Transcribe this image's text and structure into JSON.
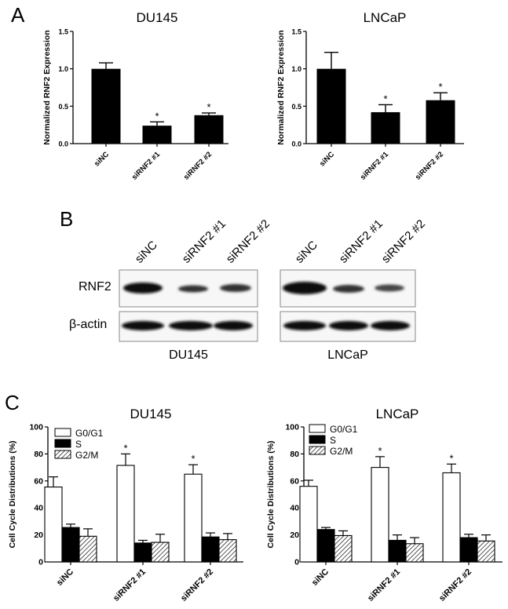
{
  "panels": {
    "a": "A",
    "b": "B",
    "c": "C"
  },
  "chart_data": [
    {
      "type": "bar",
      "title": "DU145",
      "ylabel": "Normalized RNF2 Expression",
      "categories": [
        "siNC",
        "siRNF2 #1",
        "siRNF2 #2"
      ],
      "values": [
        1.0,
        0.24,
        0.38
      ],
      "errors": [
        0.08,
        0.05,
        0.03
      ],
      "significance": [
        "",
        "*",
        "*"
      ],
      "ylim": [
        0,
        1.5
      ],
      "yticks": [
        "0.0",
        "0.5",
        "1.0",
        "1.5"
      ],
      "color": "#000000"
    },
    {
      "type": "bar",
      "title": "LNCaP",
      "ylabel": "Normalized RNF2 Expression",
      "categories": [
        "siNC",
        "siRNF2 #1",
        "siRNF2 #2"
      ],
      "values": [
        1.0,
        0.42,
        0.58
      ],
      "errors": [
        0.22,
        0.1,
        0.1
      ],
      "significance": [
        "",
        "*",
        "*"
      ],
      "ylim": [
        0,
        1.5
      ],
      "yticks": [
        "0.0",
        "0.5",
        "1.0",
        "1.5"
      ],
      "color": "#000000"
    },
    {
      "type": "bar",
      "title": "DU145",
      "ylabel": "Cell Cycle Distributions (%)",
      "categories": [
        "siNC",
        "siRNF2 #1",
        "siRNF2 #2"
      ],
      "series": [
        {
          "name": "G0/G1",
          "values": [
            55.5,
            71.5,
            65
          ],
          "errors": [
            7.5,
            8.5,
            7
          ],
          "fill": "white"
        },
        {
          "name": "S",
          "values": [
            25.5,
            14,
            18.5
          ],
          "errors": [
            2.5,
            2,
            3
          ],
          "fill": "black"
        },
        {
          "name": "G2/M",
          "values": [
            19,
            14.5,
            16.5
          ],
          "errors": [
            5.5,
            6,
            4.5
          ],
          "fill": "hatch"
        }
      ],
      "significance": [
        "",
        "*",
        "*"
      ],
      "ylim": [
        0,
        100
      ],
      "yticks": [
        "0",
        "20",
        "40",
        "60",
        "80",
        "100"
      ],
      "legend": "top-left"
    },
    {
      "type": "bar",
      "title": "LNCaP",
      "ylabel": "Cell Cycle Distributions (%)",
      "categories": [
        "siNC",
        "siRNF2 #1",
        "siRNF2 #2"
      ],
      "series": [
        {
          "name": "G0/G1",
          "values": [
            56,
            70,
            66
          ],
          "errors": [
            4.5,
            8,
            6.5
          ],
          "fill": "white"
        },
        {
          "name": "S",
          "values": [
            24,
            16,
            18
          ],
          "errors": [
            1.5,
            4,
            2.5
          ],
          "fill": "black"
        },
        {
          "name": "G2/M",
          "values": [
            19.5,
            13.5,
            15.5
          ],
          "errors": [
            3.5,
            4.5,
            4.5
          ],
          "fill": "hatch"
        }
      ],
      "significance": [
        "",
        "*",
        "*"
      ],
      "ylim": [
        0,
        100
      ],
      "yticks": [
        "0",
        "20",
        "40",
        "60",
        "80",
        "100"
      ],
      "legend": "top-left"
    }
  ],
  "western_blot": {
    "lanes": [
      "siNC",
      "siRNF2 #1",
      "siRNF2 #2"
    ],
    "rows": [
      "RNF2",
      "β-actin"
    ],
    "cells": [
      "DU145",
      "LNCaP"
    ]
  }
}
